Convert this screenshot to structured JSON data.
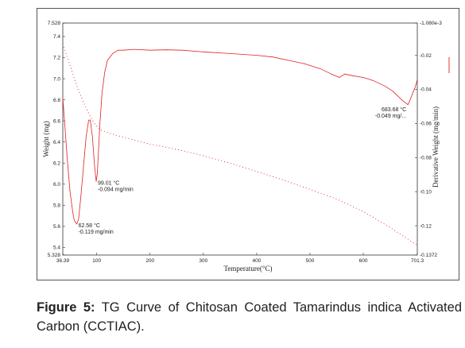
{
  "chart_data": {
    "type": "line",
    "xlabel": "Temperature(°C)",
    "ylabel_left": "Weight (mg)",
    "ylabel_right": "Derivative Weight (mg/min)",
    "x_range": [
      36.39,
      701.3
    ],
    "y_left_range": [
      5.328,
      7.528
    ],
    "y_right_range": [
      -0.1372,
      -0.00108
    ],
    "x_tick_labels": [
      "36.39",
      "100",
      "200",
      "300",
      "400",
      "500",
      "600",
      "701.3"
    ],
    "x_ticks": [
      36.39,
      100,
      200,
      300,
      400,
      500,
      600,
      701.3
    ],
    "y_left_tick_labels": [
      "7.528",
      "7.4",
      "7.2",
      "7.0",
      "6.8",
      "6.6",
      "6.4",
      "6.2",
      "6.0",
      "5.8",
      "5.6",
      "5.4",
      "5.328"
    ],
    "y_left_ticks": [
      7.528,
      7.4,
      7.2,
      7.0,
      6.8,
      6.6,
      6.4,
      6.2,
      6.0,
      5.8,
      5.6,
      5.4,
      5.328
    ],
    "y_right_tick_labels": [
      "-1.080e-3",
      "-0.02",
      "-0.04",
      "-0.06",
      "-0.08",
      "-0.10",
      "-0.12",
      "-0.1372"
    ],
    "y_right_ticks": [
      -0.00108,
      -0.02,
      -0.04,
      -0.06,
      -0.08,
      -0.1,
      -0.12,
      -0.1372
    ],
    "grid": false,
    "series": [
      {
        "axis": "left",
        "style": "dotted",
        "color": "#e02020",
        "x": [
          36.39,
          45,
          55,
          65,
          75,
          85,
          95,
          105,
          120,
          140,
          170,
          200,
          250,
          300,
          350,
          400,
          450,
          500,
          550,
          600,
          650,
          701.3
        ],
        "y": [
          7.33,
          7.2,
          7.05,
          6.9,
          6.78,
          6.67,
          6.58,
          6.52,
          6.49,
          6.46,
          6.42,
          6.38,
          6.33,
          6.27,
          6.2,
          6.12,
          6.04,
          5.95,
          5.86,
          5.74,
          5.59,
          5.42
        ]
      },
      {
        "axis": "right",
        "style": "solid",
        "color": "#e02020",
        "x": [
          36.39,
          40,
          45,
          50,
          55,
          58,
          62.58,
          66,
          70,
          75,
          80,
          85,
          88,
          92,
          96,
          99.01,
          101,
          103,
          106,
          110,
          115,
          120,
          130,
          140,
          150,
          170,
          200,
          230,
          260,
          300,
          350,
          400,
          430,
          460,
          490,
          520,
          540,
          555,
          565,
          580,
          600,
          620,
          640,
          655,
          665,
          675,
          680,
          683.68,
          688,
          693,
          697,
          700,
          701.3
        ],
        "y": [
          -0.045,
          -0.06,
          -0.082,
          -0.1,
          -0.112,
          -0.117,
          -0.119,
          -0.116,
          -0.104,
          -0.086,
          -0.068,
          -0.058,
          -0.058,
          -0.068,
          -0.085,
          -0.094,
          -0.09,
          -0.078,
          -0.06,
          -0.042,
          -0.03,
          -0.023,
          -0.019,
          -0.017,
          -0.017,
          -0.0165,
          -0.017,
          -0.0168,
          -0.017,
          -0.018,
          -0.019,
          -0.02,
          -0.021,
          -0.023,
          -0.025,
          -0.028,
          -0.031,
          -0.033,
          -0.031,
          -0.032,
          -0.033,
          -0.035,
          -0.038,
          -0.041,
          -0.044,
          -0.047,
          -0.048,
          -0.049,
          -0.046,
          -0.042,
          -0.039,
          -0.036,
          -0.034
        ]
      }
    ],
    "annotations": [
      {
        "axis": "right",
        "x": 62.58,
        "y": -0.119,
        "lines": [
          "62.58 °C",
          "-0.119 mg/min"
        ],
        "anchor": "below-right"
      },
      {
        "axis": "right",
        "x": 99.01,
        "y": -0.094,
        "lines": [
          "99.01 °C",
          "-0.094 mg/min"
        ],
        "anchor": "right"
      },
      {
        "axis": "right",
        "x": 683.68,
        "y": -0.049,
        "lines": [
          "683.68 °C",
          "-0.049 mg/..."
        ],
        "anchor": "left"
      }
    ]
  },
  "caption": {
    "label": "Figure 5:",
    "text": " TG Curve of Chitosan Coated Tamarindus indica Activated Carbon (CCTIAC)."
  }
}
